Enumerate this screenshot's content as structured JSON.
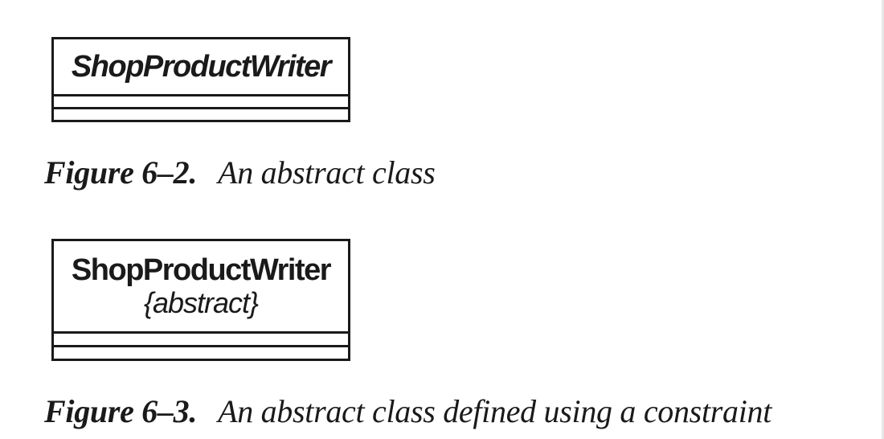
{
  "figures": [
    {
      "class_name": "ShopProductWriter",
      "stereotype": "",
      "caption": {
        "number": "Figure 6–2.",
        "text": "An abstract class"
      }
    },
    {
      "class_name": "ShopProductWriter",
      "stereotype": "{abstract}",
      "caption": {
        "number": "Figure 6–3.",
        "text": "An abstract class defined using a constraint"
      }
    }
  ]
}
